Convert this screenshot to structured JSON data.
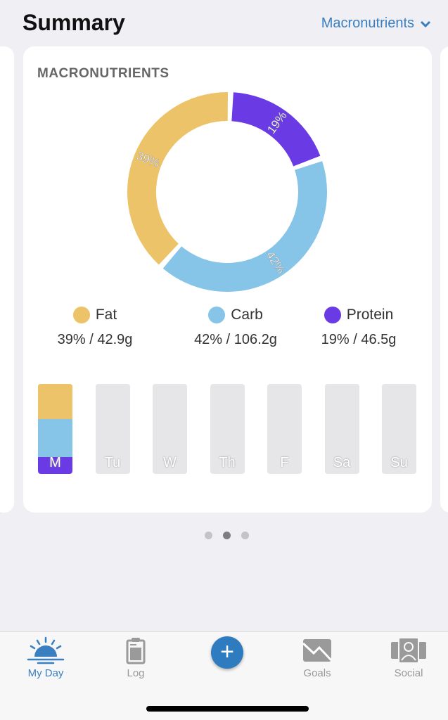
{
  "header": {
    "title": "Summary",
    "dropdown_label": "Macronutrients"
  },
  "card": {
    "title": "MACRONUTRIENTS"
  },
  "chart_data": {
    "type": "pie",
    "title": "MACRONUTRIENTS",
    "slices": [
      {
        "name": "Protein",
        "percent": 19,
        "label": "19%",
        "color": "#6a3be4"
      },
      {
        "name": "Carb",
        "percent": 42,
        "label": "42%",
        "color": "#86c4e8"
      },
      {
        "name": "Fat",
        "percent": 39,
        "label": "39%",
        "color": "#edc36a"
      }
    ]
  },
  "legend": [
    {
      "name": "Fat",
      "value": "39% / 42.9g",
      "color": "#edc36a"
    },
    {
      "name": "Carb",
      "value": "42% / 106.2g",
      "color": "#86c4e8"
    },
    {
      "name": "Protein",
      "value": "19% / 46.5g",
      "color": "#6a3be4"
    }
  ],
  "week": [
    {
      "label": "M",
      "fat": 39,
      "carb": 42,
      "protein": 19
    },
    {
      "label": "Tu"
    },
    {
      "label": "W"
    },
    {
      "label": "Th"
    },
    {
      "label": "F"
    },
    {
      "label": "Sa"
    },
    {
      "label": "Su"
    }
  ],
  "pager": {
    "count": 3,
    "active": 1
  },
  "tabs": [
    {
      "label": "My Day",
      "active": true
    },
    {
      "label": "Log"
    },
    {
      "label": "Goals"
    },
    {
      "label": "Social"
    }
  ]
}
